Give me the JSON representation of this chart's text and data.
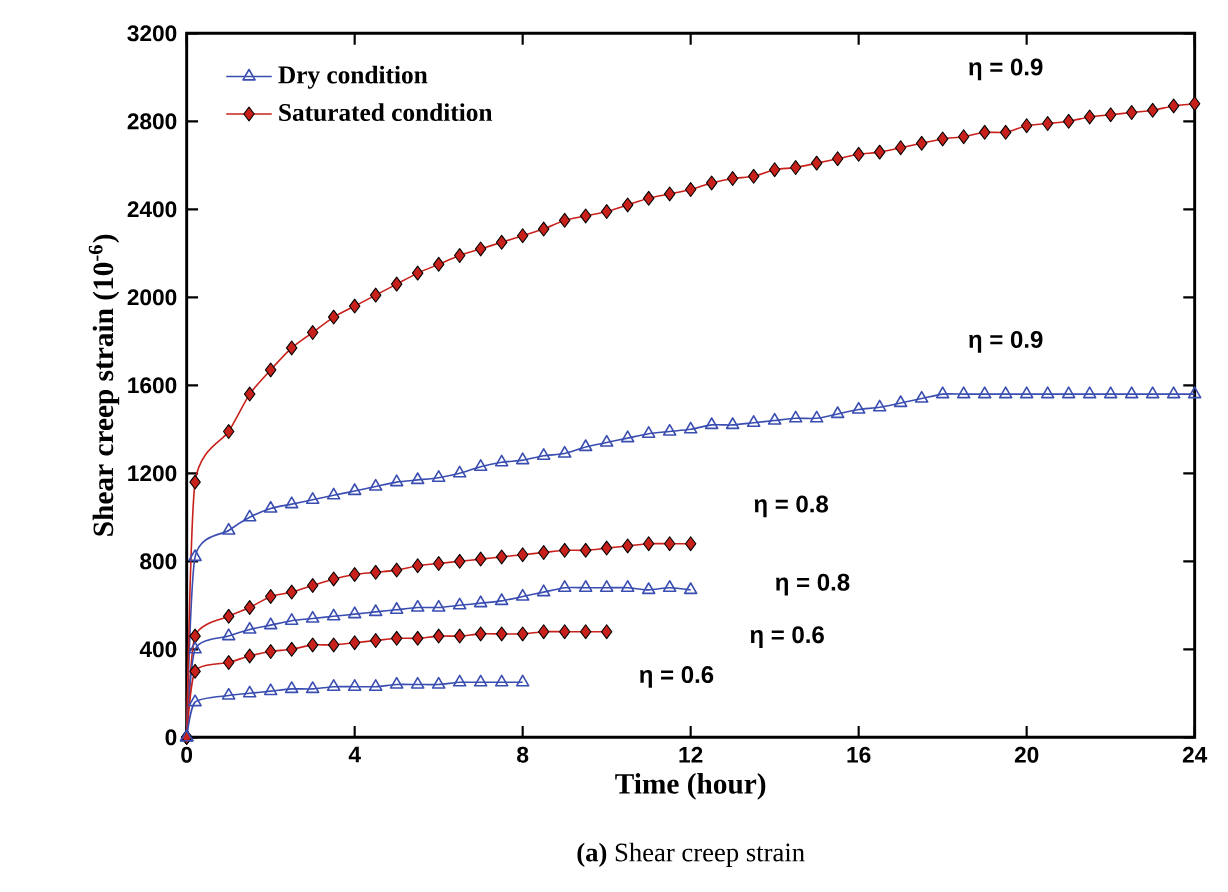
{
  "chart_data": {
    "type": "line",
    "xlabel": "Time (hour)",
    "ylabel": "Shear creep strain (10$^{-6}$)",
    "xlim": [
      0,
      24
    ],
    "ylim": [
      0,
      3200
    ],
    "xticks": [
      0,
      4,
      8,
      12,
      16,
      20,
      24
    ],
    "yticks": [
      0,
      400,
      800,
      1200,
      1600,
      2000,
      2400,
      2800,
      3200
    ],
    "grid": false,
    "legend": "top left",
    "line_style": "solid",
    "series": [
      {
        "name": "Dry condition",
        "color": "#3a4db0",
        "marker": "triangle",
        "x": [
          0,
          0.2,
          1,
          1.5,
          2,
          2.5,
          3,
          3.5,
          4,
          4.5,
          5,
          5.5,
          6,
          6.5,
          7,
          7.5,
          8,
          8.5,
          9,
          9.5,
          10,
          10.5,
          11,
          11.5,
          12,
          12.5,
          13,
          13.5,
          14,
          14.5,
          15,
          15.5,
          16,
          16.5,
          17,
          17.5,
          18,
          18.5,
          19,
          19.5,
          20,
          20.5,
          21,
          21.5,
          22,
          22.5,
          23,
          23.5,
          24
        ],
        "values": [
          0,
          820,
          940,
          1000,
          1040,
          1060,
          1080,
          1100,
          1120,
          1140,
          1160,
          1170,
          1180,
          1200,
          1230,
          1250,
          1260,
          1280,
          1290,
          1320,
          1340,
          1360,
          1380,
          1390,
          1400,
          1420,
          1420,
          1430,
          1440,
          1450,
          1450,
          1470,
          1490,
          1500,
          1520,
          1540,
          1560,
          1560,
          1560,
          1560,
          1560,
          1560,
          1560,
          1560,
          1560,
          1560,
          1560,
          1560,
          1560
        ]
      },
      {
        "name": "Saturated condition",
        "color": "#c8201a",
        "marker": "diamond",
        "x": [
          0,
          0.2,
          1,
          1.5,
          2,
          2.5,
          3,
          3.5,
          4,
          4.5,
          5,
          5.5,
          6,
          6.5,
          7,
          7.5,
          8,
          8.5,
          9,
          9.5,
          10,
          10.5,
          11,
          11.5,
          12,
          12.5,
          13,
          13.5,
          14,
          14.5,
          15,
          15.5,
          16,
          16.5,
          17,
          17.5,
          18,
          18.5,
          19,
          19.5,
          20,
          20.5,
          21,
          21.5,
          22,
          22.5,
          23,
          23.5,
          24
        ],
        "values": [
          0,
          1160,
          1390,
          1560,
          1670,
          1770,
          1840,
          1910,
          1960,
          2010,
          2060,
          2110,
          2150,
          2190,
          2220,
          2250,
          2280,
          2310,
          2350,
          2370,
          2390,
          2420,
          2450,
          2470,
          2490,
          2520,
          2540,
          2550,
          2580,
          2590,
          2610,
          2630,
          2650,
          2660,
          2680,
          2700,
          2720,
          2730,
          2750,
          2750,
          2780,
          2790,
          2800,
          2820,
          2830,
          2840,
          2850,
          2870,
          2880
        ]
      },
      {
        "color": "#c8201a",
        "marker": "diamond",
        "x": [
          0,
          0.2,
          1,
          1.5,
          2,
          2.5,
          3,
          3.5,
          4,
          4.5,
          5,
          5.5,
          6,
          6.5,
          7,
          7.5,
          8,
          8.5,
          9,
          9.5,
          10,
          10.5,
          11,
          11.5,
          12
        ],
        "values": [
          0,
          460,
          550,
          590,
          640,
          660,
          690,
          720,
          740,
          750,
          760,
          780,
          790,
          800,
          810,
          820,
          830,
          840,
          850,
          850,
          860,
          870,
          880,
          880,
          880
        ]
      },
      {
        "color": "#3a4db0",
        "marker": "triangle",
        "x": [
          0,
          0.2,
          1,
          1.5,
          2,
          2.5,
          3,
          3.5,
          4,
          4.5,
          5,
          5.5,
          6,
          6.5,
          7,
          7.5,
          8,
          8.5,
          9,
          9.5,
          10,
          10.5,
          11,
          11.5,
          12
        ],
        "values": [
          0,
          400,
          460,
          490,
          510,
          530,
          540,
          550,
          560,
          570,
          580,
          590,
          590,
          600,
          610,
          620,
          640,
          660,
          680,
          680,
          680,
          680,
          670,
          680,
          670
        ]
      },
      {
        "color": "#c8201a",
        "marker": "diamond",
        "x": [
          0,
          0.2,
          1,
          1.5,
          2,
          2.5,
          3,
          3.5,
          4,
          4.5,
          5,
          5.5,
          6,
          6.5,
          7,
          7.5,
          8,
          8.5,
          9,
          9.5,
          10
        ],
        "values": [
          0,
          300,
          340,
          370,
          390,
          400,
          420,
          420,
          430,
          440,
          450,
          450,
          460,
          460,
          470,
          470,
          470,
          480,
          480,
          480,
          480
        ]
      },
      {
        "color": "#3a4db0",
        "marker": "triangle",
        "x": [
          0,
          0.2,
          1,
          1.5,
          2,
          2.5,
          3,
          3.5,
          4,
          4.5,
          5,
          5.5,
          6,
          6.5,
          7,
          7.5,
          8
        ],
        "values": [
          0,
          160,
          190,
          200,
          210,
          220,
          220,
          230,
          230,
          230,
          240,
          240,
          240,
          250,
          250,
          250,
          250
        ]
      }
    ],
    "annotations": [
      "η = 0.9",
      "η = 0.9",
      "η = 0.8",
      "η = 0.8",
      "η = 0.6",
      "η = 0.6",
      "**(a)** Shear creep strain"
    ]
  }
}
